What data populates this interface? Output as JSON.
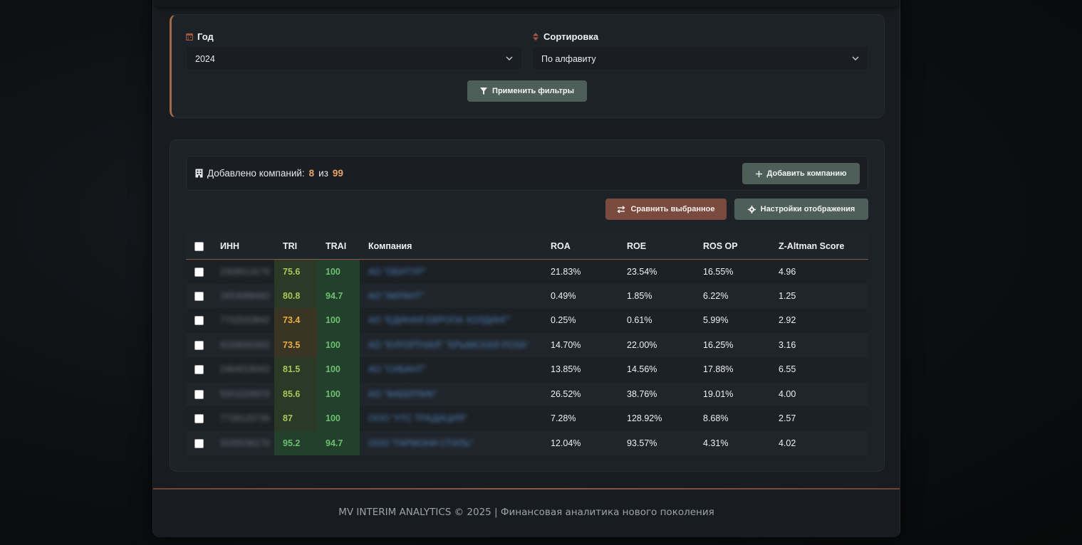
{
  "filters": {
    "year_label": "Год",
    "year_value": "2024",
    "sort_label": "Сортировка",
    "sort_value": "По алфавиту",
    "apply_label": "Применить фильтры"
  },
  "companies": {
    "added_label": "Добавлено компаний:",
    "added_count": "8",
    "of_label": "из",
    "total_count": "99",
    "add_button": "Добавить компанию",
    "compare_button": "Сравнить выбранное",
    "settings_button": "Настройки отображения"
  },
  "table": {
    "headers": [
      "ИНН",
      "TRI",
      "TRAI",
      "Компания",
      "ROA",
      "ROE",
      "ROS OP",
      "Z-Altman Score"
    ],
    "rows": [
      {
        "inn": "2309013170",
        "tri": "75.6",
        "tri_color": "#a8c85a",
        "tri_bg": "#2a3a26",
        "trai": "100",
        "company": "АО \"ОБИТУР\"",
        "roa": "21.83%",
        "roe": "23.54%",
        "ros": "16.55%",
        "z": "4.96"
      },
      {
        "inn": "1653088462",
        "tri": "80.8",
        "tri_color": "#a8c85a",
        "tri_bg": "#2a3a26",
        "trai": "94.7",
        "company": "АО \"АКРАНТ\"",
        "roa": "0.49%",
        "roe": "1.85%",
        "ros": "6.22%",
        "z": "1.25"
      },
      {
        "inn": "7702020842",
        "tri": "73.4",
        "tri_color": "#e8b040",
        "tri_bg": "#3a3424",
        "trai": "100",
        "company": "АО \"ЕДИНАЯ ЕВРОПА ХОЛДИНГ\"",
        "roa": "0.25%",
        "roe": "0.61%",
        "ros": "5.99%",
        "z": "2.92"
      },
      {
        "inn": "9109000302",
        "tri": "73.5",
        "tri_color": "#e8b040",
        "tri_bg": "#3a3424",
        "trai": "100",
        "company": "АО \"КУРОРТНАЯ\" \"КРЫМСКАЯ РОЗА\"",
        "roa": "14.70%",
        "roe": "22.00%",
        "ros": "16.25%",
        "z": "3.16"
      },
      {
        "inn": "2464018342",
        "tri": "81.5",
        "tri_color": "#a8c85a",
        "tri_bg": "#2a3a26",
        "trai": "100",
        "company": "АО \"СИБАНТ\"",
        "roa": "13.85%",
        "roe": "14.56%",
        "ros": "17.88%",
        "z": "6.55"
      },
      {
        "inn": "5001026970",
        "tri": "85.6",
        "tri_color": "#a8c85a",
        "tri_bg": "#2a3a26",
        "trai": "100",
        "company": "АО \"ФАБЕРЛИК\"",
        "roa": "26.52%",
        "roe": "38.76%",
        "ros": "19.01%",
        "z": "4.00"
      },
      {
        "inn": "7728120736",
        "tri": "87",
        "tri_color": "#a8c85a",
        "tri_bg": "#2a3a26",
        "trai": "100",
        "company": "ООО \"УТС ТРАДИЦИЯ\"",
        "roa": "7.28%",
        "roe": "128.92%",
        "ros": "8.68%",
        "z": "2.57"
      },
      {
        "inn": "5035036170",
        "tri": "95.2",
        "tri_color": "#6cc070",
        "tri_bg": "#23402c",
        "trai": "94.7",
        "company": "ООО \"ГАРМОНИ СТИЛЬ\"",
        "roa": "12.04%",
        "roe": "93.57%",
        "ros": "4.31%",
        "z": "4.02"
      }
    ]
  },
  "footer": {
    "text": "MV INTERIM ANALYTICS © 2025 | Финансовая аналитика нового поколения"
  },
  "colors": {
    "accent_orange": "#e8a46a",
    "button_green": "#4e5e58",
    "button_brown": "#7a4a3e"
  }
}
